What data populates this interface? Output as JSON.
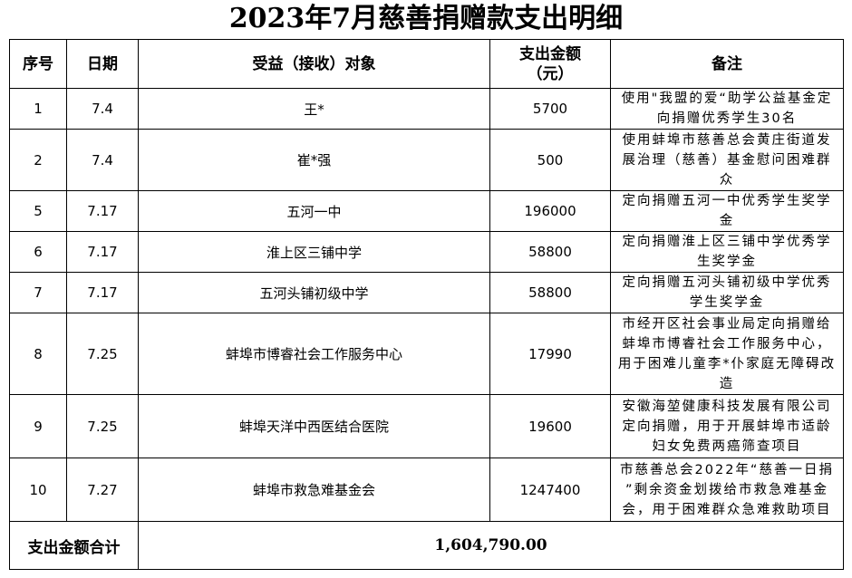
{
  "title": "2023年7月慈善捐赠款支出明细",
  "headers": [
    "序号",
    "日期",
    "受益（接收）对象",
    "支出金额\n（元）",
    "备注"
  ],
  "rows": [
    {
      "no": "1",
      "date": "7.4",
      "recipient": "王*",
      "amount": "5700",
      "note": [
        "使用\"我盟的爱“助学公益基金定",
        "向捐赠优秀学生30名"
      ]
    },
    {
      "no": "2",
      "date": "7.4",
      "recipient": "崔*强",
      "amount": "500",
      "note": [
        "使用蚌埠市慈善总会黄庄街道发",
        "展治理（慈善）基金慰问困难群",
        "众"
      ]
    },
    {
      "no": "5",
      "date": "7.17",
      "recipient": "五河一中",
      "amount": "196000",
      "note": [
        "定向捐赠五河一中优秀学生奖学",
        "金"
      ]
    },
    {
      "no": "6",
      "date": "7.17",
      "recipient": "淮上区三铺中学",
      "amount": "58800",
      "note": [
        "定向捐赠淮上区三铺中学优秀学",
        "生奖学金"
      ]
    },
    {
      "no": "7",
      "date": "7.17",
      "recipient": "五河头铺初级中学",
      "amount": "58800",
      "note": [
        "定向捐赠五河头铺初级中学优秀",
        "学生奖学金"
      ]
    },
    {
      "no": "8",
      "date": "7.25",
      "recipient": "蚌埠市博睿社会工作服务中心",
      "amount": "17990",
      "note": [
        "市经开区社会事业局定向捐赠给",
        "蚌埠市博睿社会工作服务中心，",
        "用于困难儿童李*仆家庭无障碍改",
        "造"
      ]
    },
    {
      "no": "9",
      "date": "7.25",
      "recipient": "蚌埠天洋中西医结合医院",
      "amount": "19600",
      "note": [
        "安徽海堃健康科技发展有限公司",
        "定向捐赠，用于开展蚌埠市适龄",
        "妇女免费两癌筛查项目"
      ]
    },
    {
      "no": "10",
      "date": "7.27",
      "recipient": "蚌埠市救急难基金会",
      "amount": "1247400",
      "note": [
        "市慈善总会2022年“慈善一日捐",
        "”剩余资金划拨给市救急难基金",
        "会，用于困难群众急难救助项目"
      ]
    }
  ],
  "total": {
    "label": "支出金额合计",
    "value": "1,604,790.00"
  }
}
